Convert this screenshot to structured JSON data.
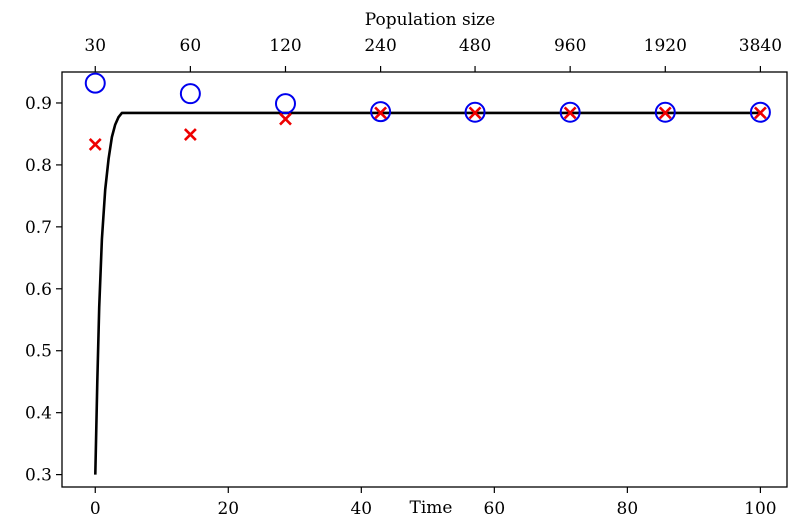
{
  "chart_data": {
    "type": "scatter",
    "xlabel": "Time",
    "x2label": "Population size",
    "xlim": [
      -5,
      104
    ],
    "ylim": [
      0.28,
      0.95
    ],
    "x_ticks": [
      0,
      20,
      40,
      60,
      80,
      100
    ],
    "x_tick_labels": [
      "0",
      "20",
      "40",
      "60",
      "80",
      "100"
    ],
    "y_ticks": [
      0.3,
      0.4,
      0.5,
      0.6,
      0.7,
      0.8,
      0.9
    ],
    "y_tick_labels": [
      "0.3",
      "0.4",
      "0.5",
      "0.6",
      "0.7",
      "0.8",
      "0.9"
    ],
    "x2_ticks": [
      0,
      14.3,
      28.6,
      42.9,
      57.1,
      71.4,
      85.7,
      100
    ],
    "x2_tick_labels": [
      "30",
      "60",
      "120",
      "240",
      "480",
      "960",
      "1920",
      "3840"
    ],
    "series": [
      {
        "kind": "line",
        "color": "#000000",
        "points": [
          [
            0,
            0.3
          ],
          [
            0.3,
            0.45
          ],
          [
            0.6,
            0.57
          ],
          [
            1,
            0.68
          ],
          [
            1.5,
            0.76
          ],
          [
            2,
            0.81
          ],
          [
            2.5,
            0.845
          ],
          [
            3,
            0.865
          ],
          [
            3.5,
            0.877
          ],
          [
            4,
            0.884
          ],
          [
            100,
            0.884
          ]
        ]
      },
      {
        "kind": "circle",
        "color": "#0000ee",
        "points": [
          [
            0,
            0.932
          ],
          [
            14.3,
            0.915
          ],
          [
            28.6,
            0.899
          ],
          [
            42.9,
            0.886
          ],
          [
            57.1,
            0.885
          ],
          [
            71.4,
            0.885
          ],
          [
            85.7,
            0.885
          ],
          [
            100,
            0.885
          ]
        ]
      },
      {
        "kind": "cross",
        "color": "#ee0000",
        "points": [
          [
            0,
            0.833
          ],
          [
            14.3,
            0.849
          ],
          [
            28.6,
            0.874
          ],
          [
            42.9,
            0.884
          ],
          [
            57.1,
            0.884
          ],
          [
            71.4,
            0.884
          ],
          [
            85.7,
            0.884
          ],
          [
            100,
            0.884
          ]
        ]
      }
    ],
    "grid": false
  }
}
